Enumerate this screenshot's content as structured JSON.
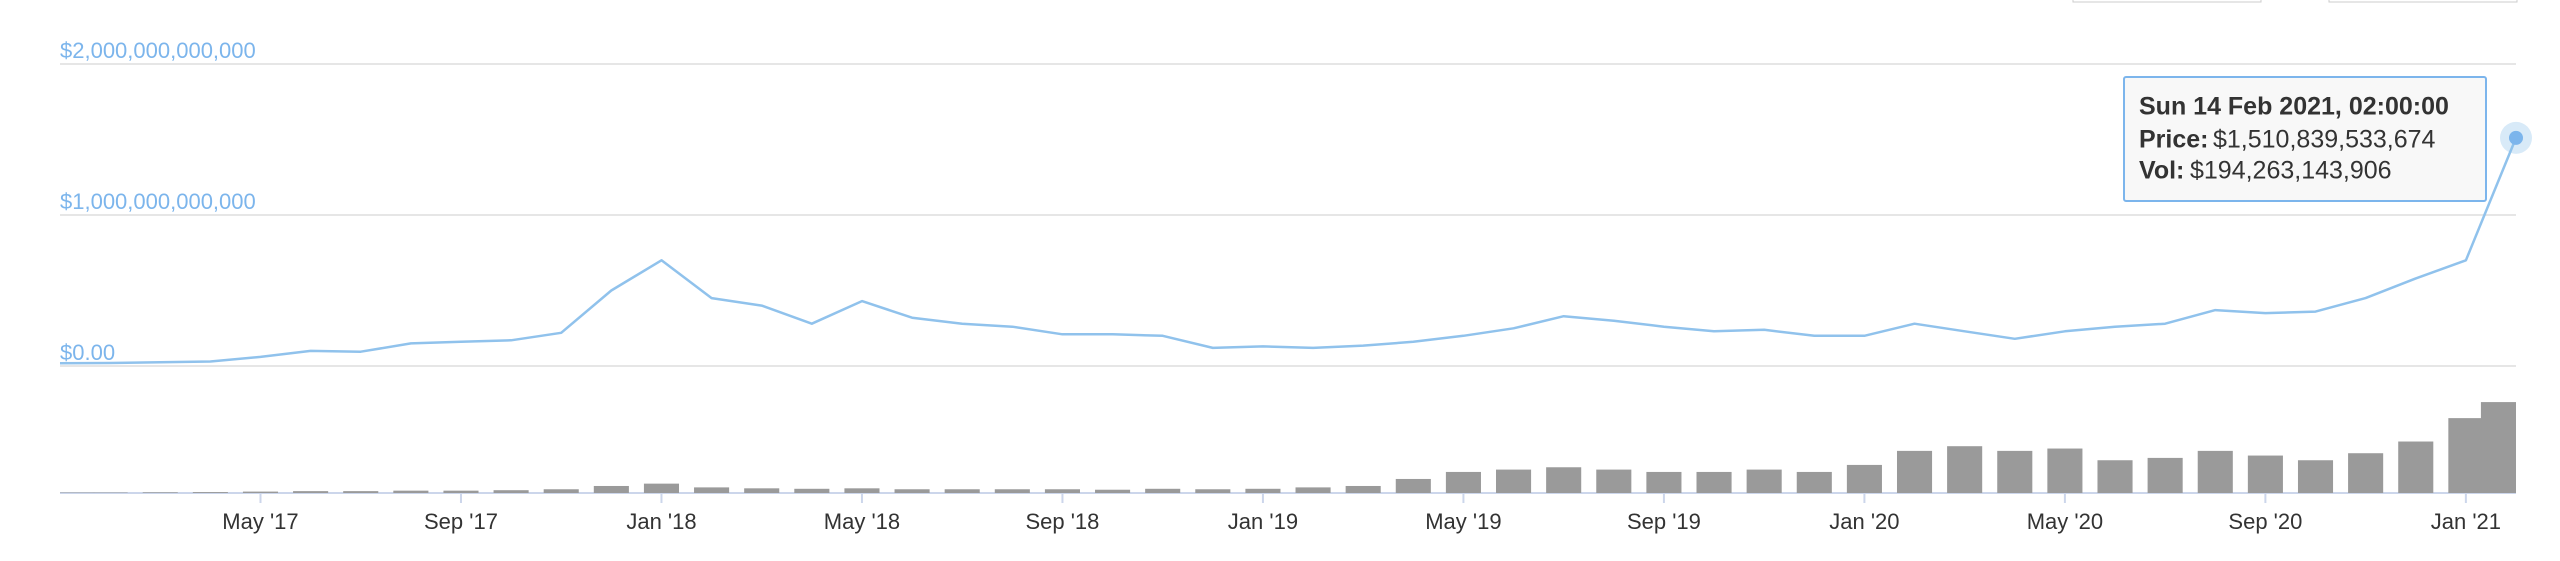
{
  "chart_data": {
    "type": "line",
    "x": [
      "2017-01",
      "2017-02",
      "2017-03",
      "2017-04",
      "2017-05",
      "2017-06",
      "2017-07",
      "2017-08",
      "2017-09",
      "2017-10",
      "2017-11",
      "2017-12",
      "2018-01",
      "2018-02",
      "2018-03",
      "2018-04",
      "2018-05",
      "2018-06",
      "2018-07",
      "2018-08",
      "2018-09",
      "2018-10",
      "2018-11",
      "2018-12",
      "2019-01",
      "2019-02",
      "2019-03",
      "2019-04",
      "2019-05",
      "2019-06",
      "2019-07",
      "2019-08",
      "2019-09",
      "2019-10",
      "2019-11",
      "2019-12",
      "2020-01",
      "2020-02",
      "2020-03",
      "2020-04",
      "2020-05",
      "2020-06",
      "2020-07",
      "2020-08",
      "2020-09",
      "2020-10",
      "2020-11",
      "2020-12",
      "2021-01",
      "2021-02"
    ],
    "series": [
      {
        "name": "Price",
        "color": "#90c2ec",
        "values": [
          18000000000,
          20000000000,
          25000000000,
          30000000000,
          60000000000,
          100000000000,
          95000000000,
          150000000000,
          160000000000,
          170000000000,
          220000000000,
          500000000000,
          700000000000,
          450000000000,
          400000000000,
          280000000000,
          430000000000,
          320000000000,
          280000000000,
          260000000000,
          210000000000,
          210000000000,
          200000000000,
          120000000000,
          130000000000,
          120000000000,
          135000000000,
          160000000000,
          200000000000,
          250000000000,
          330000000000,
          300000000000,
          260000000000,
          230000000000,
          240000000000,
          200000000000,
          200000000000,
          280000000000,
          230000000000,
          180000000000,
          230000000000,
          260000000000,
          280000000000,
          370000000000,
          350000000000,
          360000000000,
          450000000000,
          580000000000,
          700000000000,
          1510839533674
        ]
      },
      {
        "name": "Vol",
        "color": "#9a9a9a",
        "axis": "y2",
        "values": [
          1000000000,
          1000000000,
          1500000000,
          2000000000,
          3000000000,
          4000000000,
          4000000000,
          5000000000,
          5000000000,
          6000000000,
          8000000000,
          15000000000,
          20000000000,
          12000000000,
          10000000000,
          9000000000,
          10000000000,
          8000000000,
          8000000000,
          8000000000,
          8000000000,
          7000000000,
          9000000000,
          8000000000,
          9000000000,
          12000000000,
          15000000000,
          30000000000,
          45000000000,
          50000000000,
          55000000000,
          50000000000,
          45000000000,
          45000000000,
          50000000000,
          45000000000,
          60000000000,
          90000000000,
          100000000000,
          90000000000,
          95000000000,
          70000000000,
          75000000000,
          90000000000,
          80000000000,
          70000000000,
          85000000000,
          110000000000,
          160000000000,
          194263143906
        ]
      }
    ],
    "xlim": [
      "2017-01",
      "2021-02"
    ],
    "xticks": [
      {
        "value": "2017-05",
        "label": "May '17"
      },
      {
        "value": "2017-09",
        "label": "Sep '17"
      },
      {
        "value": "2018-01",
        "label": "Jan '18"
      },
      {
        "value": "2018-05",
        "label": "May '18"
      },
      {
        "value": "2018-09",
        "label": "Sep '18"
      },
      {
        "value": "2019-01",
        "label": "Jan '19"
      },
      {
        "value": "2019-05",
        "label": "May '19"
      },
      {
        "value": "2019-09",
        "label": "Sep '19"
      },
      {
        "value": "2020-01",
        "label": "Jan '20"
      },
      {
        "value": "2020-05",
        "label": "May '20"
      },
      {
        "value": "2020-09",
        "label": "Sep '20"
      },
      {
        "value": "2021-01",
        "label": "Jan '21"
      }
    ],
    "ylim": [
      0,
      2000000000000
    ],
    "yticks": [
      {
        "value": 0,
        "label": "$0.00"
      },
      {
        "value": 1000000000000,
        "label": "$1,000,000,000,000"
      },
      {
        "value": 2000000000000,
        "label": "$2,000,000,000,000"
      }
    ],
    "y2lim": [
      0,
      250000000000
    ],
    "grid": true,
    "tooltip": {
      "title": "Sun 14 Feb 2021, 02:00:00",
      "price_label": "Price:",
      "price": "$1,510,839,533,674",
      "vol_label": "Vol:",
      "vol": "$194,263,143,906"
    }
  }
}
